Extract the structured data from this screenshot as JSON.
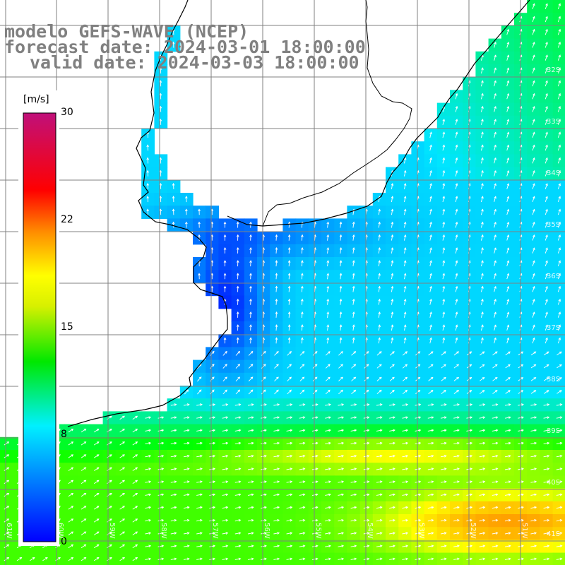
{
  "title": {
    "model": "modelo GEFS-WAVE (NCEP)",
    "forecast": "forecast date: 2024-03-01 18:00:00",
    "valid": "valid date: 2024-03-03 18:00:00"
  },
  "colorbar": {
    "unit": "[m/s]",
    "ticks": [
      "30",
      "22",
      "15",
      "8",
      "0"
    ],
    "range": [
      0,
      30
    ],
    "stops": [
      "#0000ff",
      "#00e5ff",
      "#00ff00",
      "#ffff00",
      "#ff8000",
      "#ff0000",
      "#c00080"
    ]
  },
  "map": {
    "lat_labels": [
      "32S",
      "33S",
      "34S",
      "35S",
      "36S",
      "37S",
      "38S",
      "39S",
      "40S",
      "41S"
    ],
    "lon_labels": [
      "61W",
      "60W",
      "59W",
      "58W",
      "57W",
      "56W",
      "55W",
      "54W",
      "53W",
      "52W",
      "51W"
    ],
    "land_color": "#ffffff",
    "grid_color": "#808080",
    "coast_color": "#000000",
    "arrow_color": "#ffffff"
  }
}
